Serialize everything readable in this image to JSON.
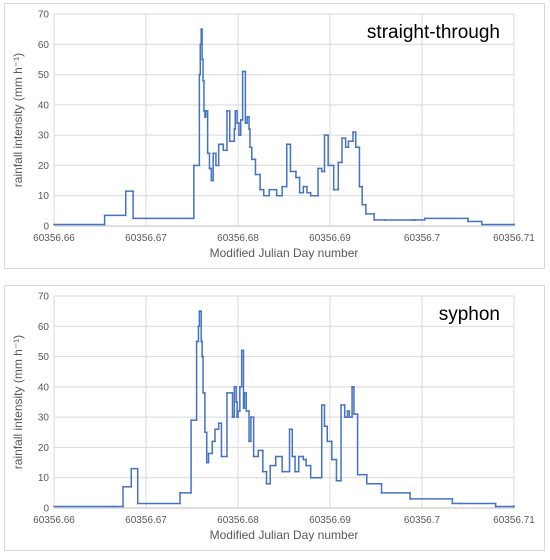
{
  "chart_data": [
    {
      "type": "line",
      "step": true,
      "title": "straight-through",
      "xlabel": "Modified Julian Day number",
      "ylabel": "rainfall intensity (mm h⁻¹)",
      "xlim": [
        60356.66,
        60356.71
      ],
      "ylim": [
        0,
        70
      ],
      "xticks": [
        "60356.66",
        "60356.67",
        "60356.68",
        "60356.69",
        "60356.7",
        "60356.71"
      ],
      "yticks": [
        "0",
        "10",
        "20",
        "30",
        "40",
        "50",
        "60",
        "70"
      ],
      "grid": true,
      "line_color": "#4472c4",
      "series": [
        {
          "x": [
            60356.66,
            60356.6655,
            60356.6678,
            60356.6686,
            60356.6752,
            60356.6758,
            60356.6759,
            60356.676,
            60356.6761,
            60356.6762,
            60356.6763,
            60356.6764,
            60356.6765,
            60356.6767,
            60356.6769,
            60356.6771,
            60356.6773,
            60356.6776,
            60356.6779,
            60356.6784,
            60356.6788,
            60356.6791,
            60356.6796,
            60356.6797,
            60356.6799,
            60356.6801,
            60356.6803,
            60356.6805,
            60356.6808,
            60356.681,
            60356.6812,
            60356.6813,
            60356.6815,
            60356.6819,
            60356.6824,
            60356.6828,
            60356.6834,
            60356.6842,
            60356.6848,
            60356.6853,
            60356.6857,
            60356.6863,
            60356.6867,
            60356.6871,
            60356.6875,
            60356.6879,
            60356.6887,
            60356.6891,
            60356.6894,
            60356.6898,
            60356.6904,
            60356.6909,
            60356.6913,
            60356.6917,
            60356.692,
            60356.6925,
            60356.6928,
            60356.6932,
            60356.6935,
            60356.6939,
            60356.6948,
            60356.696,
            60356.699,
            60356.6993,
            60356.7003,
            60356.705,
            60356.7065,
            60356.71
          ],
          "y": [
            0.5,
            3.5,
            11.5,
            2.5,
            20,
            50,
            60,
            65,
            55,
            48,
            38,
            36,
            38,
            24,
            19,
            15,
            24,
            20,
            27,
            25,
            38,
            28,
            32,
            38,
            34,
            30,
            35,
            51,
            34,
            36,
            32,
            26,
            22,
            17,
            12,
            10,
            12,
            10,
            13,
            27,
            18,
            16,
            11,
            13,
            11,
            10,
            19,
            18,
            30,
            20,
            12,
            21,
            29,
            26,
            28,
            31,
            26,
            13,
            7,
            4,
            2,
            2,
            2,
            2,
            2.5,
            1.5,
            0.5,
            0.5
          ]
        }
      ]
    },
    {
      "type": "line",
      "step": true,
      "title": "syphon",
      "xlabel": "Modified Julian Day number",
      "ylabel": "rainfall intensity (mm h⁻¹)",
      "xlim": [
        60356.66,
        60356.71
      ],
      "ylim": [
        0,
        70
      ],
      "xticks": [
        "60356.66",
        "60356.67",
        "60356.68",
        "60356.69",
        "60356.7",
        "60356.71"
      ],
      "yticks": [
        "0",
        "10",
        "20",
        "30",
        "40",
        "50",
        "60",
        "70"
      ],
      "grid": true,
      "line_color": "#4472c4",
      "series": [
        {
          "x": [
            60356.66,
            60356.6665,
            60356.6675,
            60356.6684,
            60356.6691,
            60356.6737,
            60356.6749,
            60356.6755,
            60356.6757,
            60356.6758,
            60356.676,
            60356.6761,
            60356.6762,
            60356.6764,
            60356.6766,
            60356.6768,
            60356.6772,
            60356.6775,
            60356.6779,
            60356.6782,
            60356.6788,
            60356.6794,
            60356.6796,
            60356.6798,
            60356.6799,
            60356.68,
            60356.6802,
            60356.6804,
            60356.6806,
            60356.6807,
            60356.6809,
            60356.6812,
            60356.6814,
            60356.6817,
            60356.6822,
            60356.6827,
            60356.6831,
            60356.6835,
            60356.6841,
            60356.6848,
            60356.6856,
            60356.6859,
            60356.6862,
            60356.6866,
            60356.6871,
            60356.6874,
            60356.6879,
            60356.6884,
            60356.6891,
            60356.6894,
            60356.6897,
            60356.6902,
            60356.6907,
            60356.6912,
            60356.6916,
            60356.6919,
            60356.6921,
            60356.6924,
            60356.6926,
            60356.693,
            60356.694,
            60356.6956,
            60356.6987,
            60356.7033,
            60356.7042,
            60356.708,
            60356.71
          ],
          "y": [
            0.5,
            0.5,
            7,
            13,
            1.5,
            5,
            29,
            55,
            60,
            65,
            55,
            50,
            38,
            25,
            15,
            18,
            22,
            26,
            28,
            17,
            38,
            30,
            40,
            35,
            30,
            32,
            40,
            52,
            33,
            38,
            32,
            22,
            30,
            17,
            19,
            12,
            8,
            14,
            17,
            12,
            26,
            17,
            12,
            17,
            16,
            14,
            10,
            10,
            34,
            27,
            22,
            16,
            9,
            34,
            30,
            32,
            30,
            40,
            31,
            11,
            8,
            5,
            3,
            1.5,
            1.5,
            0.5,
            0.5
          ]
        }
      ]
    }
  ]
}
